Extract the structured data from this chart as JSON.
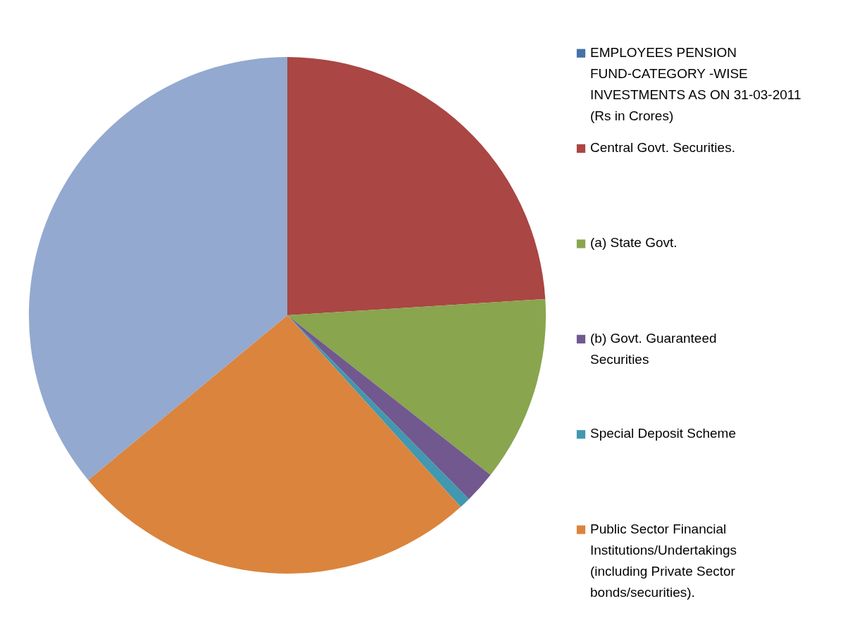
{
  "chart_data": {
    "type": "pie",
    "categories": [
      "EMPLOYEES PENSION FUND-CATEGORY -WISE INVESTMENTS AS ON 31-03-2011 (Rs in Crores)",
      "Central Govt. Securities.",
      "(a) State Govt.",
      "(b) Govt. Guaranteed Securities",
      "Special  Deposit Scheme",
      "Public Sector Financial Institutions/Undertakings (including Private Sector bonds/securities).",
      null
    ],
    "values": [
      0,
      24.0,
      11.6,
      2.0,
      0.7,
      25.7,
      36.0
    ],
    "colors": [
      "#4572a7",
      "#aa4643",
      "#89a54e",
      "#71588f",
      "#4198af",
      "#db843d",
      "#93a9cf"
    ],
    "legend": "right"
  }
}
